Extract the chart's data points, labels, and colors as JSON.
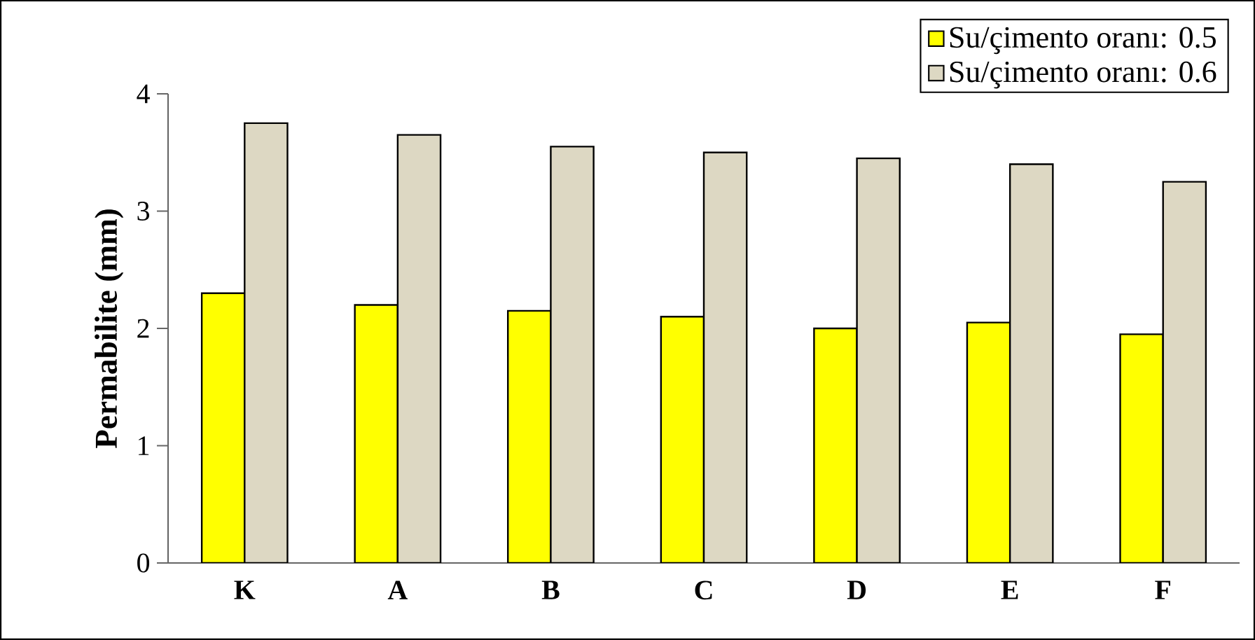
{
  "chart_data": {
    "type": "bar",
    "ylabel": "Permabilite (mm)",
    "categories": [
      "K",
      "A",
      "B",
      "C",
      "D",
      "E",
      "F"
    ],
    "series": [
      {
        "name": "Su/çimento oranı: 0.5",
        "color": "#ffff00",
        "values": [
          2.3,
          2.2,
          2.15,
          2.1,
          2.0,
          2.05,
          1.95
        ]
      },
      {
        "name": "Su/çimento oranı: 0.6",
        "color": "#ddd8c3",
        "values": [
          3.75,
          3.65,
          3.55,
          3.5,
          3.45,
          3.4,
          3.25
        ]
      }
    ],
    "ylim": [
      0,
      4
    ],
    "yticks": [
      0,
      1,
      2,
      3,
      4
    ],
    "grid": false,
    "legend": "top right"
  }
}
